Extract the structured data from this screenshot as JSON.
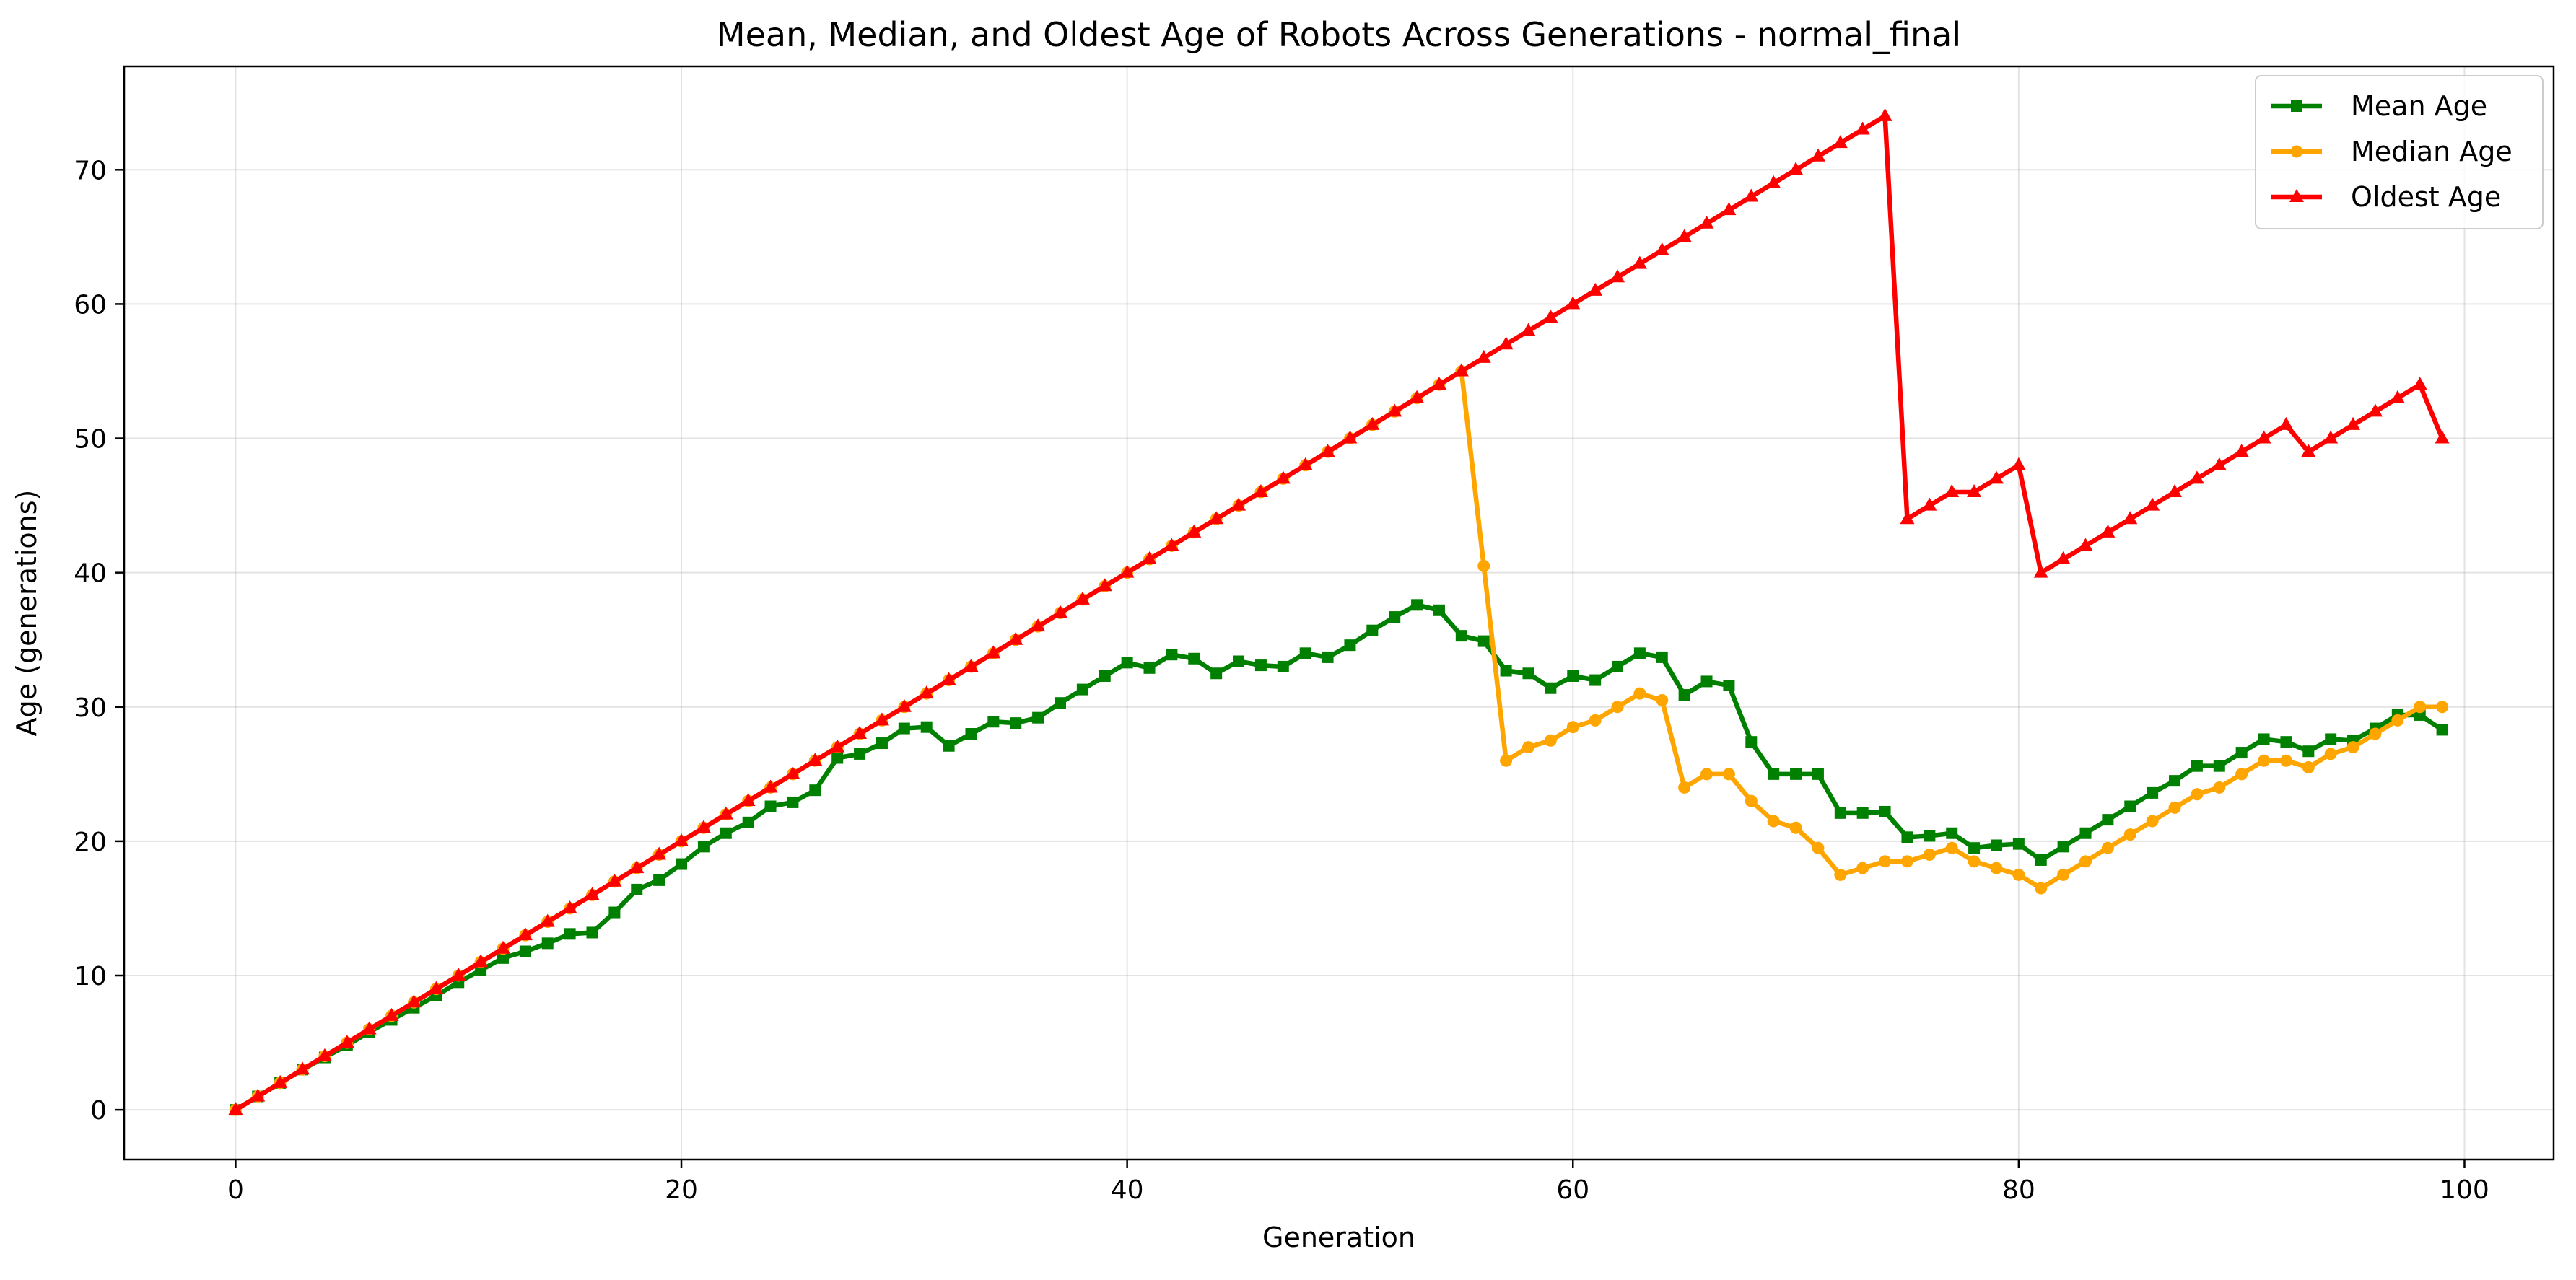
{
  "chart_data": {
    "type": "line",
    "title": "Mean, Median, and Oldest Age of Robots Across Generations - normal_final",
    "xlabel": "Generation",
    "ylabel": "Age (generations)",
    "xlim": [
      -5,
      104
    ],
    "ylim": [
      -3.7,
      77.7
    ],
    "xticks": [
      0,
      20,
      40,
      60,
      80,
      100
    ],
    "yticks": [
      0,
      10,
      20,
      30,
      40,
      50,
      60,
      70
    ],
    "grid": true,
    "legend_position": "top-right",
    "x": [
      0,
      1,
      2,
      3,
      4,
      5,
      6,
      7,
      8,
      9,
      10,
      11,
      12,
      13,
      14,
      15,
      16,
      17,
      18,
      19,
      20,
      21,
      22,
      23,
      24,
      25,
      26,
      27,
      28,
      29,
      30,
      31,
      32,
      33,
      34,
      35,
      36,
      37,
      38,
      39,
      40,
      41,
      42,
      43,
      44,
      45,
      46,
      47,
      48,
      49,
      50,
      51,
      52,
      53,
      54,
      55,
      56,
      57,
      58,
      59,
      60,
      61,
      62,
      63,
      64,
      65,
      66,
      67,
      68,
      69,
      70,
      71,
      72,
      73,
      74,
      75,
      76,
      77,
      78,
      79,
      80,
      81,
      82,
      83,
      84,
      85,
      86,
      87,
      88,
      89,
      90,
      91,
      92,
      93,
      94,
      95,
      96,
      97,
      98,
      99
    ],
    "series": [
      {
        "name": "Mean Age",
        "color": "#008000",
        "marker": "square",
        "values": [
          0,
          1,
          2,
          3,
          3.9,
          4.8,
          5.8,
          6.7,
          7.6,
          8.5,
          9.5,
          10.4,
          11.3,
          11.8,
          12.4,
          13.1,
          13.2,
          14.7,
          16.4,
          17.1,
          18.3,
          19.6,
          20.6,
          21.4,
          22.6,
          22.9,
          23.8,
          26.2,
          26.5,
          27.3,
          28.4,
          28.5,
          27.1,
          28.0,
          28.9,
          28.8,
          29.2,
          30.3,
          31.3,
          32.3,
          33.3,
          32.9,
          33.9,
          33.6,
          32.5,
          33.4,
          33.1,
          33.0,
          34.0,
          33.7,
          34.6,
          35.7,
          36.7,
          37.6,
          37.2,
          35.3,
          34.9,
          32.7,
          32.5,
          31.4,
          32.3,
          32.0,
          33.0,
          34.0,
          33.7,
          30.9,
          31.9,
          31.6,
          27.4,
          25.0,
          25.0,
          25.0,
          22.1,
          22.1,
          22.2,
          20.3,
          20.4,
          20.6,
          19.5,
          19.7,
          19.8,
          18.6,
          19.6,
          20.6,
          21.6,
          22.6,
          23.6,
          24.5,
          25.6,
          25.6,
          26.6,
          27.6,
          27.4,
          26.7,
          27.6,
          27.5,
          28.4,
          29.4,
          29.4,
          28.3
        ]
      },
      {
        "name": "Median Age",
        "color": "#FFA500",
        "marker": "circle",
        "values": [
          0,
          1,
          2,
          3,
          4,
          5,
          6,
          7,
          8,
          9,
          10,
          11,
          12,
          13,
          14,
          15,
          16,
          17,
          18,
          19,
          20,
          21,
          22,
          23,
          24,
          25,
          26,
          27,
          28,
          29,
          30,
          31,
          32,
          33,
          34,
          35,
          36,
          37,
          38,
          39,
          40,
          41,
          42,
          43,
          44,
          45,
          46,
          47,
          48,
          49,
          50,
          51,
          52,
          53,
          54,
          55,
          40.5,
          26.0,
          27.0,
          27.5,
          28.5,
          29.0,
          30.0,
          31.0,
          30.5,
          24.0,
          25.0,
          25.0,
          23.0,
          21.5,
          21.0,
          19.5,
          17.5,
          18.0,
          18.5,
          18.5,
          19.0,
          19.5,
          18.5,
          18.0,
          17.5,
          16.5,
          17.5,
          18.5,
          19.5,
          20.5,
          21.5,
          22.5,
          23.5,
          24.0,
          25.0,
          26.0,
          26.0,
          25.5,
          26.5,
          27.0,
          28.0,
          29.0,
          30.0,
          30.0
        ]
      },
      {
        "name": "Oldest Age",
        "color": "#FF0000",
        "marker": "triangle",
        "values": [
          0,
          1,
          2,
          3,
          4,
          5,
          6,
          7,
          8,
          9,
          10,
          11,
          12,
          13,
          14,
          15,
          16,
          17,
          18,
          19,
          20,
          21,
          22,
          23,
          24,
          25,
          26,
          27,
          28,
          29,
          30,
          31,
          32,
          33,
          34,
          35,
          36,
          37,
          38,
          39,
          40,
          41,
          42,
          43,
          44,
          45,
          46,
          47,
          48,
          49,
          50,
          51,
          52,
          53,
          54,
          55,
          56,
          57,
          58,
          59,
          60,
          61,
          62,
          63,
          64,
          65,
          66,
          67,
          68,
          69,
          70,
          71,
          72,
          73,
          74,
          44,
          45,
          46,
          46,
          47,
          48,
          40,
          41,
          42,
          43,
          44,
          45,
          46,
          47,
          48,
          49,
          50,
          51,
          49,
          50,
          51,
          52,
          53,
          54,
          50
        ]
      }
    ]
  }
}
